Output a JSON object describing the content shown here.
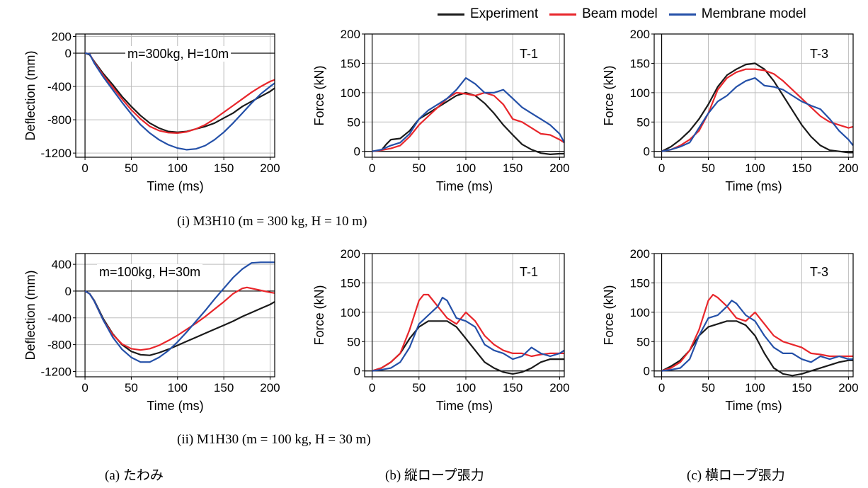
{
  "legend": [
    {
      "label": "Experiment",
      "color": "#1a1a1a"
    },
    {
      "label": "Beam model",
      "color": "#e8262b"
    },
    {
      "label": "Membrane model",
      "color": "#2450a8"
    }
  ],
  "captions": {
    "row1": "(i) M3H10 (m = 300 kg, H = 10 m)",
    "row2": "(ii) M1H30 (m = 100 kg, H = 30 m)",
    "col_a": "(a) たわみ",
    "col_b": "(b) 縦ロープ張力",
    "col_c": "(c) 横ロープ張力"
  },
  "chart_data": [
    {
      "id": "m3h10-deflection",
      "type": "line",
      "annotation": "m=300kg, H=10m",
      "xlabel": "Time (ms)",
      "ylabel": "Deflection (mm)",
      "xlim": [
        -10,
        205
      ],
      "ylim": [
        -1250,
        230
      ],
      "xticks": [
        0,
        50,
        100,
        150,
        200
      ],
      "yticks": [
        -1200,
        -800,
        -400,
        0,
        200
      ],
      "grid": true,
      "series": [
        {
          "name": "Experiment",
          "x": [
            0,
            5,
            10,
            20,
            30,
            40,
            50,
            60,
            70,
            80,
            90,
            100,
            110,
            120,
            130,
            140,
            150,
            160,
            170,
            180,
            190,
            200,
            205
          ],
          "y": [
            0,
            -20,
            -100,
            -250,
            -380,
            -520,
            -640,
            -750,
            -840,
            -900,
            -940,
            -950,
            -940,
            -910,
            -880,
            -840,
            -780,
            -720,
            -640,
            -580,
            -520,
            -460,
            -420
          ]
        },
        {
          "name": "Beam model",
          "x": [
            0,
            5,
            10,
            20,
            30,
            40,
            50,
            60,
            70,
            80,
            90,
            100,
            110,
            120,
            130,
            140,
            150,
            160,
            170,
            180,
            190,
            200,
            205
          ],
          "y": [
            0,
            -10,
            -110,
            -270,
            -410,
            -550,
            -680,
            -790,
            -880,
            -930,
            -955,
            -960,
            -945,
            -910,
            -860,
            -790,
            -710,
            -630,
            -550,
            -470,
            -400,
            -340,
            -320
          ]
        },
        {
          "name": "Membrane model",
          "x": [
            0,
            5,
            10,
            20,
            30,
            40,
            50,
            60,
            70,
            80,
            90,
            100,
            110,
            120,
            130,
            140,
            150,
            160,
            170,
            180,
            190,
            200,
            205
          ],
          "y": [
            0,
            -10,
            -120,
            -290,
            -440,
            -590,
            -730,
            -860,
            -960,
            -1040,
            -1100,
            -1140,
            -1160,
            -1150,
            -1110,
            -1040,
            -950,
            -840,
            -720,
            -600,
            -490,
            -400,
            -360
          ]
        }
      ]
    },
    {
      "id": "m3h10-t1",
      "type": "line",
      "annotation": "T-1",
      "xlabel": "Time (ms)",
      "ylabel": "Force (kN)",
      "xlim": [
        -8,
        205
      ],
      "ylim": [
        -10,
        200
      ],
      "xticks": [
        0,
        50,
        100,
        150,
        200
      ],
      "yticks": [
        0,
        50,
        100,
        150,
        200
      ],
      "grid": true,
      "series": [
        {
          "name": "Experiment",
          "x": [
            0,
            10,
            15,
            20,
            30,
            40,
            50,
            60,
            70,
            80,
            90,
            100,
            110,
            120,
            130,
            140,
            150,
            160,
            170,
            180,
            190,
            200,
            205
          ],
          "y": [
            0,
            2,
            12,
            20,
            22,
            35,
            55,
            65,
            75,
            85,
            95,
            100,
            95,
            82,
            65,
            45,
            28,
            12,
            3,
            -3,
            -5,
            -4,
            -4
          ]
        },
        {
          "name": "Beam model",
          "x": [
            0,
            10,
            20,
            30,
            40,
            50,
            60,
            70,
            80,
            90,
            100,
            110,
            120,
            130,
            140,
            150,
            160,
            170,
            180,
            190,
            200,
            205
          ],
          "y": [
            0,
            2,
            5,
            10,
            25,
            45,
            60,
            75,
            90,
            100,
            98,
            95,
            100,
            95,
            80,
            55,
            50,
            40,
            30,
            28,
            20,
            15
          ]
        },
        {
          "name": "Membrane model",
          "x": [
            0,
            10,
            20,
            30,
            40,
            50,
            60,
            70,
            80,
            90,
            100,
            110,
            120,
            130,
            140,
            150,
            160,
            170,
            180,
            190,
            200,
            205
          ],
          "y": [
            0,
            3,
            10,
            15,
            30,
            55,
            70,
            80,
            90,
            105,
            125,
            115,
            100,
            100,
            105,
            90,
            75,
            65,
            55,
            45,
            30,
            15
          ]
        }
      ]
    },
    {
      "id": "m3h10-t3",
      "type": "line",
      "annotation": "T-3",
      "xlabel": "Time (ms)",
      "ylabel": "Force (kN)",
      "xlim": [
        -8,
        205
      ],
      "ylim": [
        -10,
        200
      ],
      "xticks": [
        0,
        50,
        100,
        150,
        200
      ],
      "yticks": [
        0,
        50,
        100,
        150,
        200
      ],
      "grid": true,
      "series": [
        {
          "name": "Experiment",
          "x": [
            0,
            10,
            20,
            30,
            40,
            50,
            60,
            70,
            80,
            90,
            100,
            110,
            120,
            130,
            140,
            150,
            160,
            170,
            180,
            190,
            200,
            205
          ],
          "y": [
            0,
            8,
            20,
            35,
            55,
            80,
            110,
            130,
            140,
            148,
            150,
            140,
            120,
            95,
            70,
            45,
            25,
            10,
            2,
            0,
            -2,
            -2
          ]
        },
        {
          "name": "Beam model",
          "x": [
            0,
            10,
            20,
            30,
            40,
            50,
            60,
            70,
            80,
            90,
            100,
            110,
            120,
            130,
            140,
            150,
            160,
            170,
            180,
            190,
            200,
            205
          ],
          "y": [
            0,
            3,
            10,
            20,
            35,
            65,
            105,
            125,
            135,
            140,
            140,
            138,
            132,
            120,
            105,
            90,
            75,
            60,
            50,
            45,
            40,
            42
          ]
        },
        {
          "name": "Membrane model",
          "x": [
            0,
            10,
            20,
            30,
            40,
            50,
            60,
            70,
            80,
            90,
            100,
            110,
            120,
            130,
            140,
            150,
            160,
            170,
            180,
            190,
            200,
            205
          ],
          "y": [
            0,
            3,
            8,
            15,
            40,
            65,
            85,
            95,
            110,
            120,
            125,
            112,
            110,
            105,
            95,
            85,
            78,
            72,
            55,
            35,
            20,
            10
          ]
        }
      ]
    },
    {
      "id": "m1h30-deflection",
      "type": "line",
      "annotation": "m=100kg, H=30m",
      "xlabel": "Time (ms)",
      "ylabel": "Deflection (mm)",
      "xlim": [
        -10,
        205
      ],
      "ylim": [
        -1280,
        560
      ],
      "xticks": [
        0,
        50,
        100,
        150,
        200
      ],
      "yticks": [
        -1200,
        -800,
        -400,
        0,
        400
      ],
      "grid": true,
      "series": [
        {
          "name": "Experiment",
          "x": [
            0,
            5,
            10,
            20,
            30,
            40,
            50,
            60,
            70,
            80,
            90,
            100,
            110,
            120,
            130,
            140,
            150,
            160,
            170,
            180,
            190,
            200,
            205
          ],
          "y": [
            0,
            -40,
            -140,
            -420,
            -640,
            -800,
            -900,
            -950,
            -960,
            -920,
            -870,
            -810,
            -750,
            -690,
            -630,
            -570,
            -510,
            -450,
            -380,
            -320,
            -260,
            -200,
            -160
          ]
        },
        {
          "name": "Beam model",
          "x": [
            0,
            5,
            10,
            20,
            30,
            40,
            50,
            60,
            70,
            80,
            90,
            100,
            110,
            120,
            130,
            140,
            150,
            160,
            170,
            175,
            180,
            190,
            200,
            205
          ],
          "y": [
            0,
            -40,
            -150,
            -440,
            -650,
            -790,
            -860,
            -880,
            -860,
            -810,
            -740,
            -660,
            -570,
            -480,
            -380,
            -270,
            -160,
            -40,
            40,
            55,
            40,
            10,
            -20,
            -30
          ]
        },
        {
          "name": "Membrane model",
          "x": [
            0,
            5,
            10,
            20,
            30,
            40,
            50,
            60,
            70,
            80,
            90,
            100,
            110,
            120,
            130,
            140,
            150,
            160,
            170,
            180,
            190,
            200,
            205
          ],
          "y": [
            0,
            -40,
            -150,
            -440,
            -690,
            -870,
            -990,
            -1060,
            -1060,
            -990,
            -890,
            -760,
            -610,
            -450,
            -290,
            -120,
            40,
            200,
            330,
            420,
            430,
            430,
            430
          ]
        }
      ]
    },
    {
      "id": "m1h30-t1",
      "type": "line",
      "annotation": "T-1",
      "xlabel": "Time (ms)",
      "ylabel": "Force (kN)",
      "xlim": [
        -8,
        205
      ],
      "ylim": [
        -10,
        200
      ],
      "xticks": [
        0,
        50,
        100,
        150,
        200
      ],
      "yticks": [
        0,
        50,
        100,
        150,
        200
      ],
      "grid": true,
      "series": [
        {
          "name": "Experiment",
          "x": [
            0,
            10,
            20,
            30,
            40,
            50,
            60,
            70,
            80,
            90,
            100,
            110,
            120,
            130,
            140,
            150,
            160,
            170,
            180,
            190,
            200,
            205
          ],
          "y": [
            0,
            5,
            15,
            30,
            55,
            75,
            85,
            85,
            85,
            75,
            55,
            35,
            15,
            5,
            -2,
            -5,
            -2,
            5,
            15,
            20,
            20,
            20
          ]
        },
        {
          "name": "Beam model",
          "x": [
            0,
            10,
            20,
            30,
            40,
            50,
            55,
            60,
            70,
            80,
            90,
            100,
            110,
            120,
            130,
            140,
            150,
            160,
            170,
            180,
            190,
            200,
            205
          ],
          "y": [
            0,
            5,
            15,
            30,
            70,
            120,
            130,
            130,
            110,
            90,
            80,
            100,
            85,
            60,
            45,
            35,
            30,
            30,
            25,
            28,
            30,
            30,
            30
          ]
        },
        {
          "name": "Membrane model",
          "x": [
            0,
            10,
            20,
            30,
            40,
            50,
            60,
            70,
            75,
            80,
            90,
            100,
            110,
            120,
            130,
            140,
            150,
            160,
            170,
            180,
            190,
            200,
            205
          ],
          "y": [
            0,
            2,
            5,
            15,
            40,
            80,
            95,
            110,
            125,
            120,
            90,
            85,
            75,
            45,
            35,
            30,
            20,
            25,
            40,
            30,
            25,
            30,
            35
          ]
        }
      ]
    },
    {
      "id": "m1h30-t3",
      "type": "line",
      "annotation": "T-3",
      "xlabel": "Time (ms)",
      "ylabel": "Force (kN)",
      "xlim": [
        -8,
        205
      ],
      "ylim": [
        -10,
        200
      ],
      "xticks": [
        0,
        50,
        100,
        150,
        200
      ],
      "yticks": [
        0,
        50,
        100,
        150,
        200
      ],
      "grid": true,
      "series": [
        {
          "name": "Experiment",
          "x": [
            0,
            10,
            20,
            30,
            40,
            50,
            60,
            70,
            80,
            90,
            100,
            110,
            120,
            130,
            140,
            150,
            160,
            170,
            180,
            190,
            200,
            205
          ],
          "y": [
            0,
            8,
            18,
            35,
            60,
            75,
            80,
            85,
            85,
            78,
            60,
            30,
            5,
            -5,
            -8,
            -5,
            0,
            5,
            10,
            15,
            18,
            18
          ]
        },
        {
          "name": "Beam model",
          "x": [
            0,
            10,
            20,
            30,
            40,
            50,
            55,
            60,
            70,
            80,
            90,
            100,
            110,
            120,
            130,
            140,
            150,
            160,
            170,
            180,
            190,
            200,
            205
          ],
          "y": [
            0,
            5,
            15,
            35,
            70,
            120,
            130,
            125,
            110,
            90,
            85,
            100,
            80,
            60,
            50,
            45,
            40,
            30,
            28,
            25,
            25,
            25,
            25
          ]
        },
        {
          "name": "Membrane model",
          "x": [
            0,
            10,
            20,
            30,
            40,
            50,
            60,
            70,
            75,
            80,
            90,
            100,
            110,
            120,
            130,
            140,
            150,
            160,
            170,
            180,
            190,
            200,
            205
          ],
          "y": [
            0,
            2,
            5,
            20,
            60,
            90,
            95,
            110,
            120,
            115,
            95,
            85,
            60,
            40,
            30,
            30,
            20,
            15,
            25,
            20,
            25,
            20,
            20
          ]
        }
      ]
    }
  ]
}
